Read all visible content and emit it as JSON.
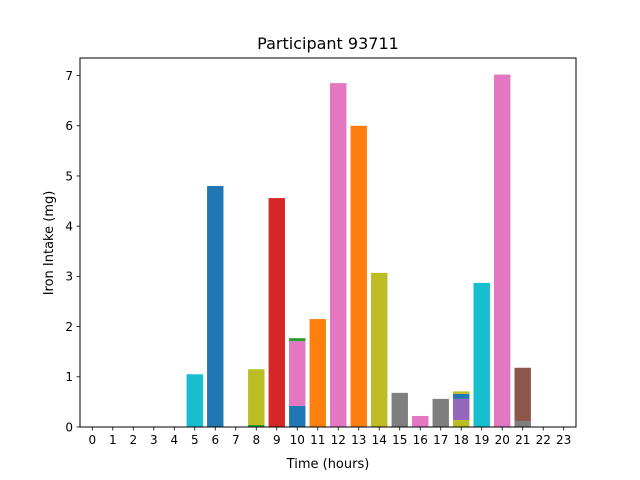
{
  "chart_data": {
    "type": "bar",
    "stacked": true,
    "title": "Participant 93711",
    "xlabel": "Time (hours)",
    "ylabel": "Iron Intake (mg)",
    "xlim": [
      -0.6,
      23.6
    ],
    "ylim": [
      0,
      7.35
    ],
    "x_ticks": [
      0,
      1,
      2,
      3,
      4,
      5,
      6,
      7,
      8,
      9,
      10,
      11,
      12,
      13,
      14,
      15,
      16,
      17,
      18,
      19,
      20,
      21,
      22,
      23
    ],
    "y_ticks": [
      0,
      1,
      2,
      3,
      4,
      5,
      6,
      7
    ],
    "grid": false,
    "legend": "none",
    "segments": [
      {
        "hour": 5,
        "base": 0,
        "value": 1.05,
        "color": "#17becf"
      },
      {
        "hour": 6,
        "base": 0,
        "value": 4.8,
        "color": "#1f77b4"
      },
      {
        "hour": 8,
        "base": 0,
        "value": 0.04,
        "color": "#2ca02c"
      },
      {
        "hour": 8,
        "base": 0.04,
        "value": 1.11,
        "color": "#bcbd22"
      },
      {
        "hour": 9,
        "base": 0,
        "value": 4.56,
        "color": "#d62728"
      },
      {
        "hour": 10,
        "base": 0,
        "value": 0.42,
        "color": "#1f77b4"
      },
      {
        "hour": 10,
        "base": 0.42,
        "value": 1.29,
        "color": "#e377c2"
      },
      {
        "hour": 10,
        "base": 1.71,
        "value": 0.06,
        "color": "#2ca02c"
      },
      {
        "hour": 11,
        "base": 0,
        "value": 2.15,
        "color": "#ff7f0e"
      },
      {
        "hour": 12,
        "base": 0,
        "value": 6.85,
        "color": "#e377c2"
      },
      {
        "hour": 13,
        "base": 0,
        "value": 6.0,
        "color": "#ff7f0e"
      },
      {
        "hour": 14,
        "base": 0,
        "value": 3.07,
        "color": "#bcbd22"
      },
      {
        "hour": 15,
        "base": 0,
        "value": 0.68,
        "color": "#7f7f7f"
      },
      {
        "hour": 16,
        "base": 0,
        "value": 0.22,
        "color": "#e377c2"
      },
      {
        "hour": 17,
        "base": 0,
        "value": 0.56,
        "color": "#7f7f7f"
      },
      {
        "hour": 18,
        "base": 0,
        "value": 0.14,
        "color": "#bcbd22"
      },
      {
        "hour": 18,
        "base": 0.14,
        "value": 0.42,
        "color": "#9467bd"
      },
      {
        "hour": 18,
        "base": 0.56,
        "value": 0.1,
        "color": "#1f77b4"
      },
      {
        "hour": 18,
        "base": 0.66,
        "value": 0.05,
        "color": "#bcbd22"
      },
      {
        "hour": 19,
        "base": 0,
        "value": 2.87,
        "color": "#17becf"
      },
      {
        "hour": 20,
        "base": 0,
        "value": 7.02,
        "color": "#e377c2"
      },
      {
        "hour": 21,
        "base": 0,
        "value": 0.12,
        "color": "#7f7f7f"
      },
      {
        "hour": 21,
        "base": 0.12,
        "value": 1.06,
        "color": "#8c564b"
      }
    ]
  }
}
